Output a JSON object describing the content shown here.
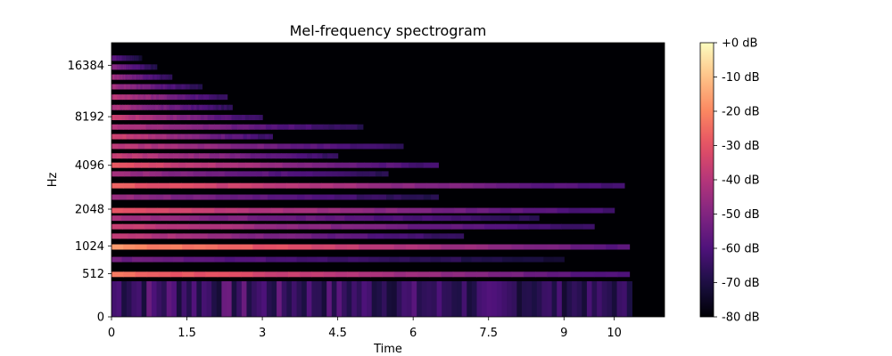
{
  "chart_data": {
    "type": "heatmap",
    "title": "Mel-frequency spectrogram",
    "xlabel": "Time",
    "ylabel": "Hz",
    "xlim": [
      0,
      11
    ],
    "x_ticks": [
      0,
      1.5,
      3,
      4.5,
      6,
      7.5,
      9,
      10
    ],
    "x_tick_labels": [
      "0",
      "1.5",
      "3",
      "4.5",
      "6",
      "7.5",
      "9",
      "10"
    ],
    "y_scale": "mel",
    "y_ticks": [
      0,
      512,
      1024,
      2048,
      4096,
      8192,
      16384
    ],
    "y_tick_labels": [
      "0",
      "512",
      "1024",
      "2048",
      "4096",
      "8192",
      "16384"
    ],
    "colormap": "magma",
    "color_stops": [
      "#000004",
      "#1c1044",
      "#4f127b",
      "#812581",
      "#b5367a",
      "#e55064",
      "#fb8761",
      "#fec287",
      "#fcfdbf"
    ],
    "colorbar": {
      "range_db": [
        -80,
        0
      ],
      "tick_values": [
        0,
        -10,
        -20,
        -30,
        -40,
        -50,
        -60,
        -70,
        -80
      ],
      "tick_labels": [
        "+0 dB",
        "-10 dB",
        "-20 dB",
        "-30 dB",
        "-40 dB",
        "-50 dB",
        "-60 dB",
        "-70 dB",
        "-80 dB"
      ]
    },
    "signal_duration_s": 10.35,
    "harmonic_bands": [
      {
        "freq_hz": 500,
        "level_db": -28,
        "decay_end_s": 10.3
      },
      {
        "freq_hz": 750,
        "level_db": -58,
        "decay_end_s": 9.0
      },
      {
        "freq_hz": 1000,
        "level_db": -22,
        "decay_end_s": 10.3
      },
      {
        "freq_hz": 1250,
        "level_db": -42,
        "decay_end_s": 7.0
      },
      {
        "freq_hz": 1500,
        "level_db": -40,
        "decay_end_s": 9.6
      },
      {
        "freq_hz": 1750,
        "level_db": -48,
        "decay_end_s": 8.5
      },
      {
        "freq_hz": 2000,
        "level_db": -35,
        "decay_end_s": 10.0
      },
      {
        "freq_hz": 2500,
        "level_db": -50,
        "decay_end_s": 6.5
      },
      {
        "freq_hz": 3000,
        "level_db": -32,
        "decay_end_s": 10.2
      },
      {
        "freq_hz": 3600,
        "level_db": -48,
        "decay_end_s": 5.5
      },
      {
        "freq_hz": 4100,
        "level_db": -34,
        "decay_end_s": 6.5
      },
      {
        "freq_hz": 4700,
        "level_db": -40,
        "decay_end_s": 4.5
      },
      {
        "freq_hz": 5400,
        "level_db": -42,
        "decay_end_s": 5.8
      },
      {
        "freq_hz": 6200,
        "level_db": -38,
        "decay_end_s": 3.2
      },
      {
        "freq_hz": 7100,
        "level_db": -45,
        "decay_end_s": 5.0
      },
      {
        "freq_hz": 8100,
        "level_db": -40,
        "decay_end_s": 3.0
      },
      {
        "freq_hz": 9300,
        "level_db": -45,
        "decay_end_s": 2.4
      },
      {
        "freq_hz": 10700,
        "level_db": -42,
        "decay_end_s": 2.3
      },
      {
        "freq_hz": 12300,
        "level_db": -48,
        "decay_end_s": 1.8
      },
      {
        "freq_hz": 14000,
        "level_db": -48,
        "decay_end_s": 1.2
      },
      {
        "freq_hz": 16000,
        "level_db": -52,
        "decay_end_s": 0.9
      },
      {
        "freq_hz": 18000,
        "level_db": -60,
        "decay_end_s": 0.6
      }
    ],
    "broadband_noise": {
      "max_freq_hz": 400,
      "level_db": -55,
      "decay_end_s": 10.3
    },
    "grid": false,
    "legend": "colorbar right"
  }
}
